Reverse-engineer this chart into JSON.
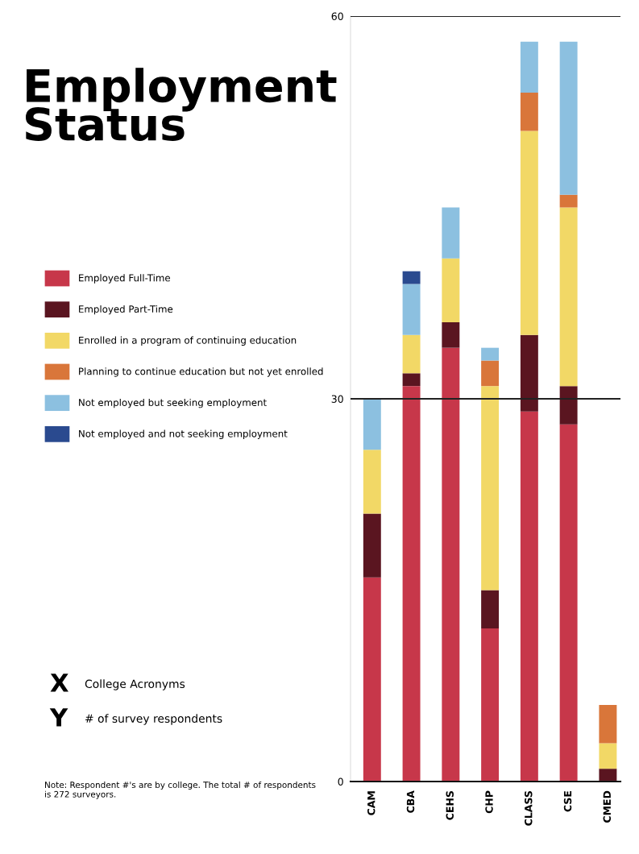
{
  "chart_data": {
    "type": "bar",
    "title": "Employment\nStatus",
    "categories": [
      "CAM",
      "CBA",
      "CEHS",
      "CHP",
      "CLASS",
      "CSE",
      "CMED"
    ],
    "series": [
      {
        "name": "Employed Full-Time",
        "color": "#c7374a",
        "values": [
          16,
          31,
          34,
          12,
          29,
          28,
          0
        ]
      },
      {
        "name": "Employed Part-Time",
        "color": "#5a1520",
        "values": [
          5,
          1,
          2,
          3,
          6,
          3,
          1
        ]
      },
      {
        "name": "Enrolled in a program of continuing education",
        "color": "#f2d866",
        "values": [
          5,
          3,
          5,
          16,
          16,
          14,
          2
        ]
      },
      {
        "name": "Planning to continue education but not yet enrolled",
        "color": "#d9763a",
        "values": [
          0,
          0,
          0,
          2,
          3,
          1,
          3
        ]
      },
      {
        "name": "Not employed but seeking employment",
        "color": "#8cc0e0",
        "values": [
          4,
          4,
          4,
          1,
          4,
          12,
          0
        ]
      },
      {
        "name": "Not employed and not seeking employment",
        "color": "#2a4a8f",
        "values": [
          0,
          1,
          0,
          0,
          0,
          0,
          0
        ]
      }
    ],
    "stacked": true,
    "ylim": [
      0,
      60
    ],
    "yticks": [
      0,
      30,
      60
    ],
    "grid": "y",
    "legend": "left",
    "annotations": [
      "X",
      "College Acronyms",
      "Y",
      "# of survey respondents",
      "Note: Respondent #'s are by college. The total # of respondents is 272 surveyors."
    ]
  }
}
